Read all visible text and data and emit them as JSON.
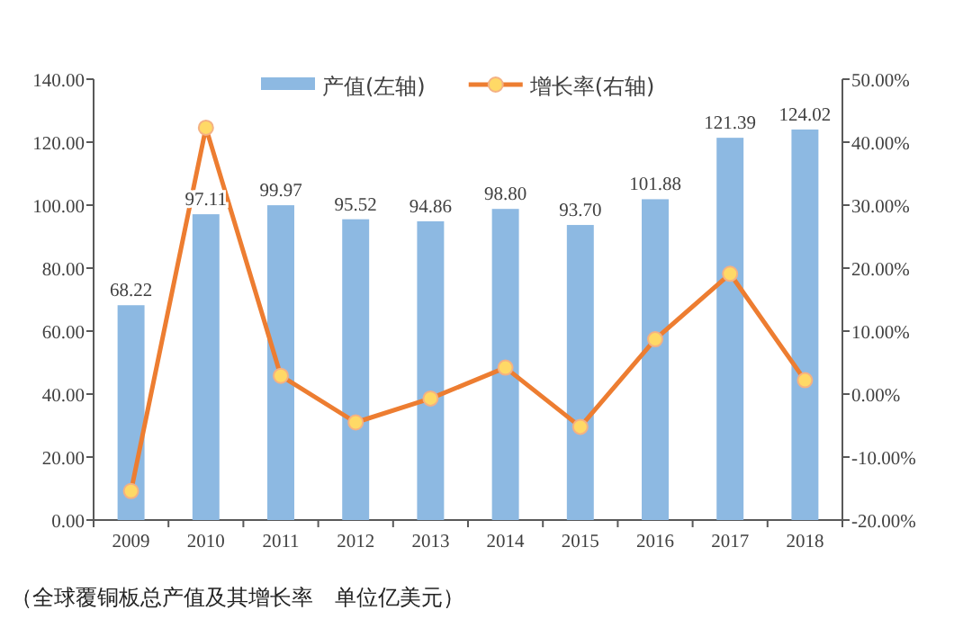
{
  "chart_data": {
    "type": "bar",
    "categories": [
      "2009",
      "2010",
      "2011",
      "2012",
      "2013",
      "2014",
      "2015",
      "2016",
      "2017",
      "2018"
    ],
    "series": [
      {
        "name": "产值(左轴)",
        "color": "#8db9e2",
        "values": [
          68.22,
          97.11,
          99.97,
          95.52,
          94.86,
          98.8,
          93.7,
          101.88,
          121.39,
          124.02
        ],
        "value_labels": [
          "68.22",
          "97.11",
          "99.97",
          "95.52",
          "94.86",
          "98.80",
          "93.70",
          "101.88",
          "121.39",
          "124.02"
        ]
      },
      {
        "name": "增长率(右轴)",
        "type": "line",
        "axis": "y2",
        "color": "#ed7d31",
        "marker": "circle",
        "values": [
          -15.4,
          42.3,
          2.9,
          -4.5,
          -0.7,
          4.2,
          -5.2,
          8.7,
          19.1,
          2.2
        ]
      }
    ],
    "ylim": [
      0,
      140
    ],
    "yticks": [
      {
        "value": 0,
        "label": "0.00"
      },
      {
        "value": 20,
        "label": "20.00"
      },
      {
        "value": 40,
        "label": "40.00"
      },
      {
        "value": 60,
        "label": "60.00"
      },
      {
        "value": 80,
        "label": "80.00"
      },
      {
        "value": 100,
        "label": "100.00"
      },
      {
        "value": 120,
        "label": "120.00"
      },
      {
        "value": 140,
        "label": "140.00"
      }
    ],
    "y2lim": [
      -20,
      50
    ],
    "y2ticks": [
      {
        "value": -20,
        "label": "-20.00%"
      },
      {
        "value": -10,
        "label": "-10.00%"
      },
      {
        "value": 0,
        "label": "0.00%"
      },
      {
        "value": 10,
        "label": "10.00%"
      },
      {
        "value": 20,
        "label": "20.00%"
      },
      {
        "value": 30,
        "label": "30.00%"
      },
      {
        "value": 40,
        "label": "40.00%"
      },
      {
        "value": 50,
        "label": "50.00%"
      }
    ],
    "legend": "top",
    "grid": false,
    "annotations": [
      "（全球覆铜板总产值及其增长率　单位亿美元）"
    ]
  }
}
